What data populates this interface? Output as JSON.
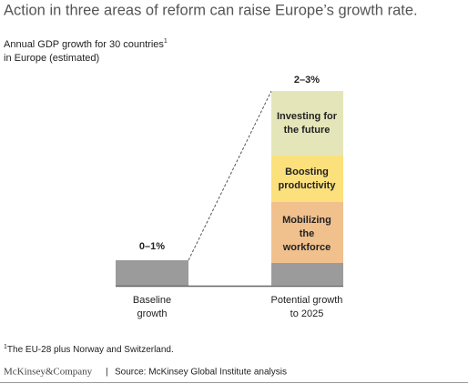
{
  "title": "Action in three areas of reform can raise Europe’s growth rate.",
  "subtitle": {
    "lines": [
      "Annual GDP growth for 30 countries",
      "in Europe (estimated)"
    ],
    "footnote_marker": "1"
  },
  "columns": [
    {
      "label_lines": [
        "Baseline",
        "growth"
      ],
      "value_label": "0–1%"
    },
    {
      "label_lines": [
        "Potential growth",
        "to 2025"
      ],
      "value_label": "2–3%",
      "segments": [
        {
          "lines": [
            "Mobilizing",
            "the",
            "workforce"
          ]
        },
        {
          "lines": [
            "Boosting",
            "productivity"
          ]
        },
        {
          "lines": [
            "Investing for",
            "the future"
          ]
        }
      ]
    }
  ],
  "footnote": {
    "marker": "1",
    "text": "The EU-28 plus Norway and Switzerland."
  },
  "footer": {
    "brand": "McKinsey&Company",
    "separator": "|",
    "source": "Source: McKinsey Global Institute analysis"
  }
}
